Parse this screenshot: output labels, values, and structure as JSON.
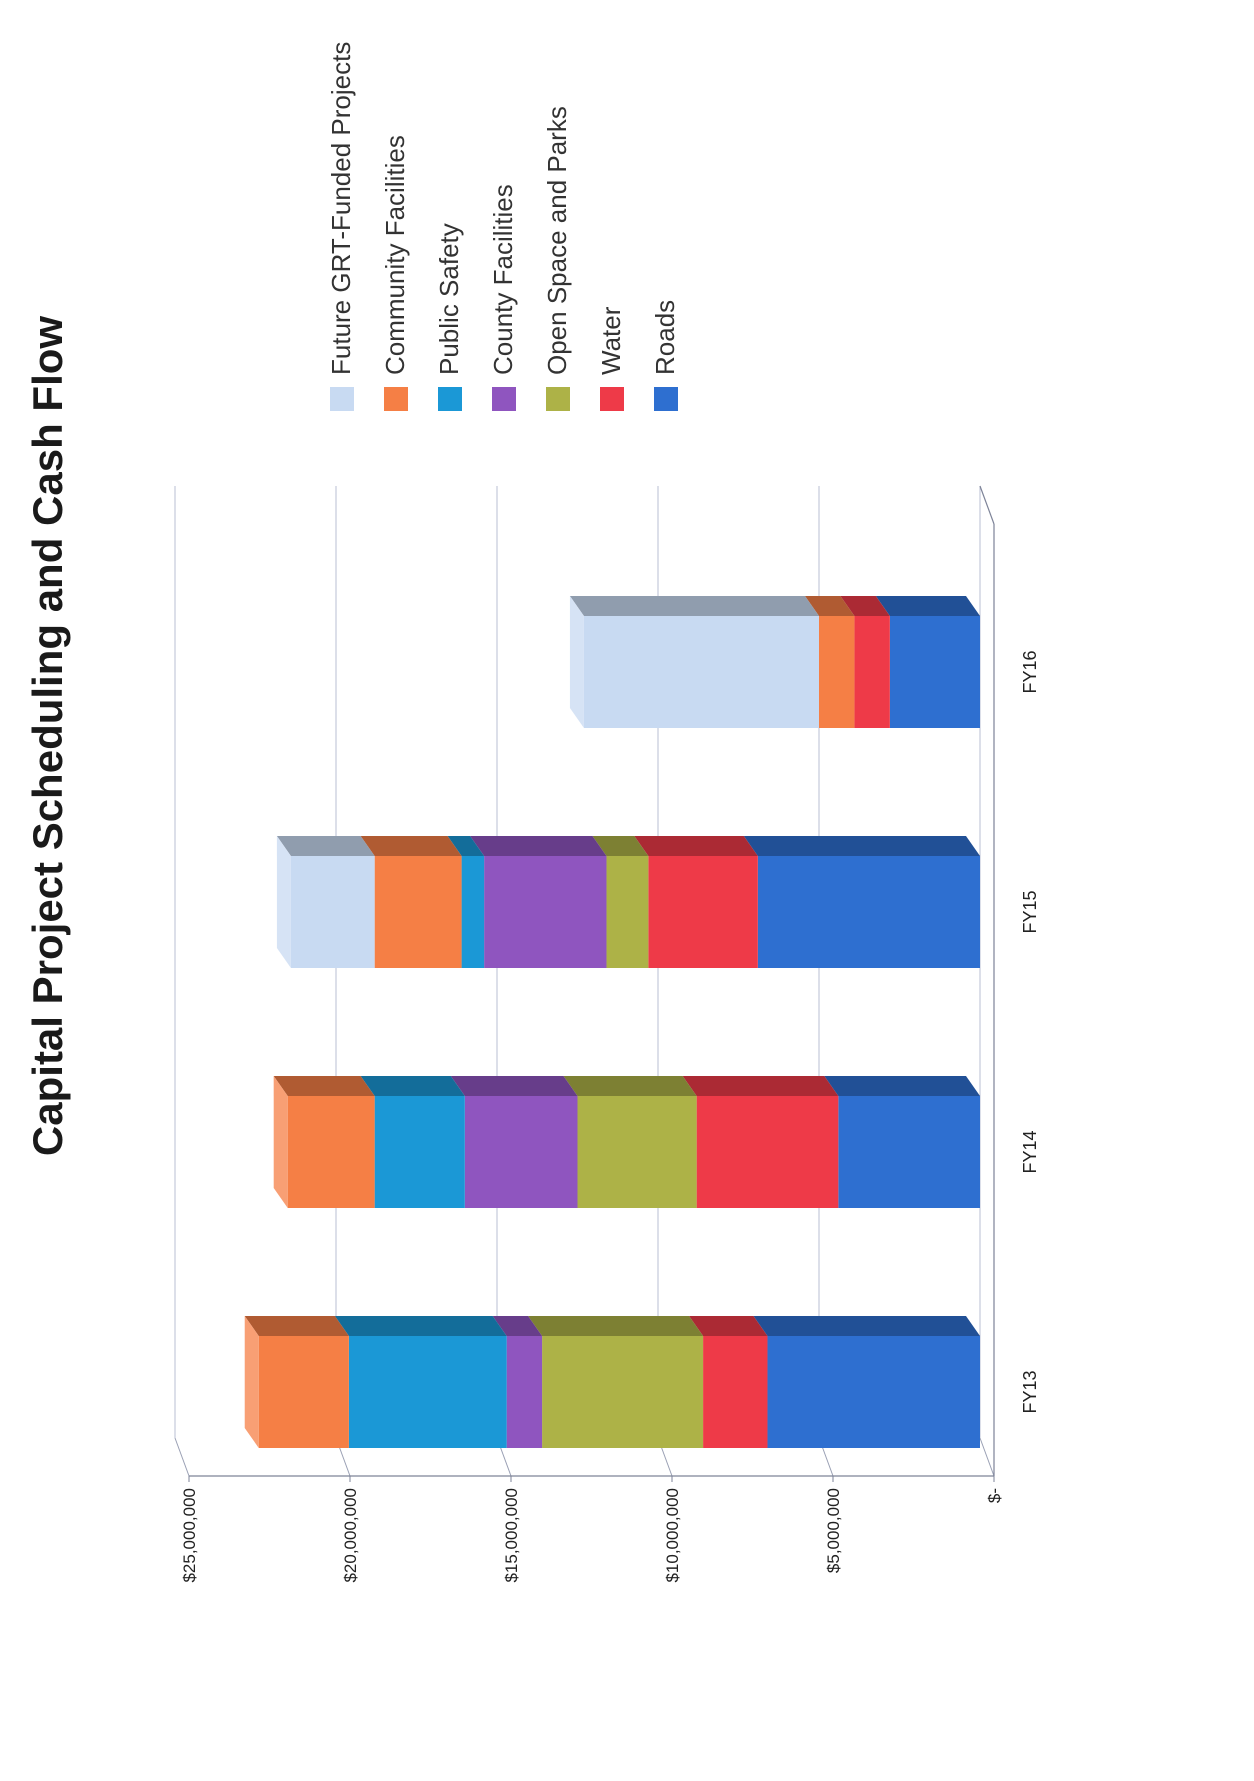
{
  "chart_data": {
    "type": "bar",
    "stacked": true,
    "three_d": true,
    "orientation": "vertical",
    "page_rotation": "rotated 90 degrees counter-clockwise",
    "title": "Capital Project Scheduling and Cash Flow",
    "xlabel": "",
    "ylabel": "",
    "categories": [
      "FY13",
      "FY14",
      "FY15",
      "FY16"
    ],
    "ylim": [
      0,
      25000000
    ],
    "y_ticks": [
      0,
      5000000,
      10000000,
      15000000,
      20000000,
      25000000
    ],
    "y_tick_labels": [
      "$-",
      "$5,000,000",
      "$10,000,000",
      "$15,000,000",
      "$20,000,000",
      "$25,000,000"
    ],
    "grid": true,
    "legend_position": "right",
    "series": [
      {
        "name": "Roads",
        "color": "#2E6FD0",
        "values": [
          6600000,
          4400000,
          6900000,
          2800000
        ]
      },
      {
        "name": "Water",
        "color": "#EE3A48",
        "values": [
          2000000,
          4400000,
          3400000,
          1100000
        ]
      },
      {
        "name": "Open Space and Parks",
        "color": "#ADB247",
        "values": [
          5000000,
          3700000,
          1300000,
          0
        ]
      },
      {
        "name": "County Facilities",
        "color": "#8F55BF",
        "values": [
          1100000,
          3500000,
          3800000,
          0
        ]
      },
      {
        "name": "Public Safety",
        "color": "#1B98D6",
        "values": [
          4900000,
          2800000,
          700000,
          0
        ]
      },
      {
        "name": "Community Facilities",
        "color": "#F57F45",
        "values": [
          2800000,
          2700000,
          2700000,
          1100000
        ]
      },
      {
        "name": "Future GRT-Funded Projects",
        "color": "#C8DAF2",
        "values": [
          0,
          0,
          2600000,
          7300000
        ]
      }
    ],
    "legend_order": [
      "Future GRT-Funded Projects",
      "Community Facilities",
      "Public Safety",
      "County Facilities",
      "Open Space and Parks",
      "Water",
      "Roads"
    ]
  }
}
